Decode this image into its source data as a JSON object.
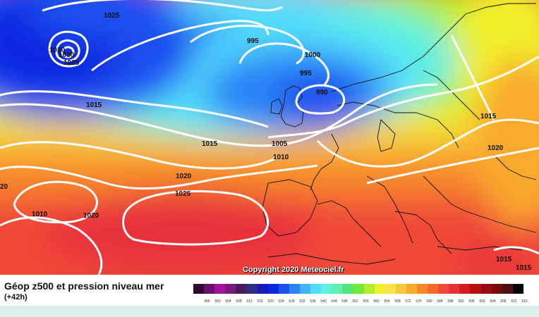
{
  "map": {
    "isobar_labels": [
      "1025",
      "1030",
      "1030",
      "1025",
      "995",
      "1000",
      "995",
      "990",
      "1015",
      "1015",
      "1005",
      "1010",
      "1020",
      "1025",
      "1020",
      "1010",
      "20",
      "1015",
      "1020",
      "1015",
      "1015"
    ],
    "copyright": "Copyright 2020 Meteociel.fr"
  },
  "legend": {
    "title": "Géop z500 et pression niveau mer",
    "subtitle": "(+42h)",
    "scale": [
      {
        "value": "496",
        "color": "#2e0a2e"
      },
      {
        "value": "500",
        "color": "#6a0f6a"
      },
      {
        "value": "504",
        "color": "#a012a0"
      },
      {
        "value": "508",
        "color": "#7a1a7a"
      },
      {
        "value": "512",
        "color": "#4a1a5e"
      },
      {
        "value": "516",
        "color": "#2d2d8a"
      },
      {
        "value": "520",
        "color": "#1a1ab8"
      },
      {
        "value": "524",
        "color": "#0a28e0"
      },
      {
        "value": "528",
        "color": "#1a50f0"
      },
      {
        "value": "532",
        "color": "#2b84f5"
      },
      {
        "value": "536",
        "color": "#40b4fa"
      },
      {
        "value": "540",
        "color": "#52dcfc"
      },
      {
        "value": "544",
        "color": "#5ef0e0"
      },
      {
        "value": "548",
        "color": "#60f0b0"
      },
      {
        "value": "552",
        "color": "#50e878"
      },
      {
        "value": "556",
        "color": "#70ea3c"
      },
      {
        "value": "560",
        "color": "#b0ee2c"
      },
      {
        "value": "564",
        "color": "#f0f02a"
      },
      {
        "value": "568",
        "color": "#f6e24c"
      },
      {
        "value": "572",
        "color": "#f7c83a"
      },
      {
        "value": "576",
        "color": "#f9a92e"
      },
      {
        "value": "580",
        "color": "#f7882a"
      },
      {
        "value": "584",
        "color": "#f46a2a"
      },
      {
        "value": "588",
        "color": "#f04a38"
      },
      {
        "value": "592",
        "color": "#e8303a"
      },
      {
        "value": "596",
        "color": "#d81c1c"
      },
      {
        "value": "600",
        "color": "#b81010"
      },
      {
        "value": "604",
        "color": "#980a10"
      },
      {
        "value": "608",
        "color": "#780a0a"
      },
      {
        "value": "612",
        "color": "#501010"
      },
      {
        "value": "616",
        "color": "#050505"
      }
    ]
  }
}
